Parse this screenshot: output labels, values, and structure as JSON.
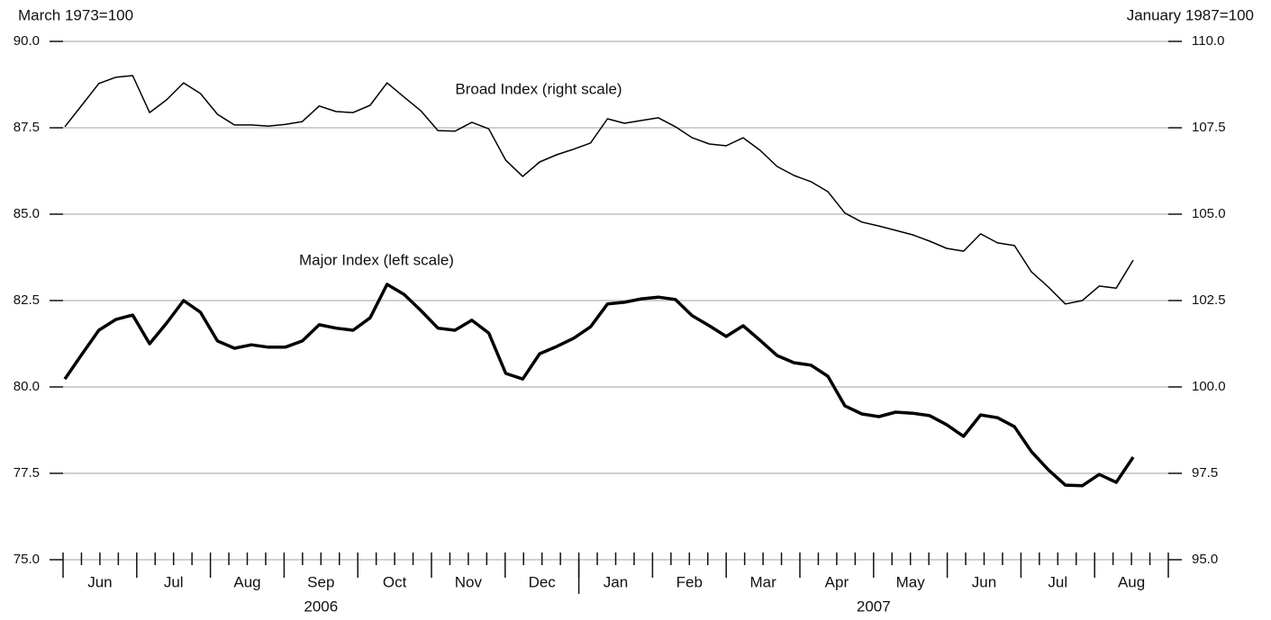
{
  "chart_data": {
    "type": "line",
    "y_axis_label": "March 1973=100",
    "y2_axis_label": "January 1987=100",
    "annotations": [
      "Broad Index (right scale)",
      "Major Index (left scale)"
    ],
    "month_labels": [
      "Jun",
      "Jul",
      "Aug",
      "Sep",
      "Oct",
      "Nov",
      "Dec",
      "Jan",
      "Feb",
      "Mar",
      "Apr",
      "May",
      "Jun",
      "Jul",
      "Aug"
    ],
    "year_labels": [
      "2006",
      "2007"
    ],
    "ylim": [
      75,
      90
    ],
    "yticks": [
      {
        "value": 75,
        "label": "75.0"
      },
      {
        "value": 77.5,
        "label": "77.5"
      },
      {
        "value": 80,
        "label": "80.0"
      },
      {
        "value": 82.5,
        "label": "82.5"
      },
      {
        "value": 85,
        "label": "85.0"
      },
      {
        "value": 87.5,
        "label": "87.5"
      },
      {
        "value": 90,
        "label": "90.0"
      }
    ],
    "y2lim": [
      95,
      110
    ],
    "y2ticks": [
      {
        "value": 95,
        "label": "95.0"
      },
      {
        "value": 97.5,
        "label": "97.5"
      },
      {
        "value": 100,
        "label": "100.0"
      },
      {
        "value": 102.5,
        "label": "102.5"
      },
      {
        "value": 105,
        "label": "105.0"
      },
      {
        "value": 107.5,
        "label": "107.5"
      },
      {
        "value": 110,
        "label": "110.0"
      }
    ],
    "grid": true,
    "series": [
      {
        "name": "Major Index",
        "color": "#000000",
        "width": 3.5,
        "values": [
          80.23,
          80.94,
          81.64,
          81.95,
          82.08,
          81.25,
          81.85,
          82.5,
          82.16,
          81.33,
          81.12,
          81.22,
          81.15,
          81.15,
          81.33,
          81.8,
          81.7,
          81.64,
          82.0,
          82.97,
          82.68,
          82.21,
          81.7,
          81.64,
          81.93,
          81.56,
          80.39,
          80.23,
          80.96,
          81.17,
          81.41,
          81.74,
          82.4,
          82.45,
          82.55,
          82.6,
          82.53,
          82.06,
          81.77,
          81.46,
          81.77,
          81.35,
          80.91,
          80.7,
          80.63,
          80.31,
          79.45,
          79.22,
          79.14,
          79.27,
          79.24,
          79.17,
          78.91,
          78.57,
          79.19,
          79.11,
          78.85,
          78.13,
          77.6,
          77.16,
          77.14,
          77.47,
          77.24,
          77.97
        ]
      },
      {
        "name": "Broad Index",
        "color": "#000000",
        "width": 1.5,
        "axis": "y2",
        "values": [
          107.53,
          108.15,
          108.78,
          108.96,
          109.01,
          107.94,
          108.31,
          108.8,
          108.49,
          107.89,
          107.58,
          107.58,
          107.55,
          107.6,
          107.68,
          108.13,
          107.97,
          107.94,
          108.15,
          108.8,
          108.39,
          107.99,
          107.42,
          107.4,
          107.66,
          107.47,
          106.56,
          106.09,
          106.51,
          106.72,
          106.88,
          107.06,
          107.76,
          107.63,
          107.71,
          107.79,
          107.53,
          107.21,
          107.03,
          106.98,
          107.21,
          106.85,
          106.38,
          106.12,
          105.94,
          105.65,
          105.03,
          104.77,
          104.66,
          104.53,
          104.4,
          104.22,
          104.01,
          103.93,
          104.43,
          104.17,
          104.09,
          103.33,
          102.89,
          102.4,
          102.5,
          102.92,
          102.86,
          103.67
        ]
      }
    ]
  }
}
